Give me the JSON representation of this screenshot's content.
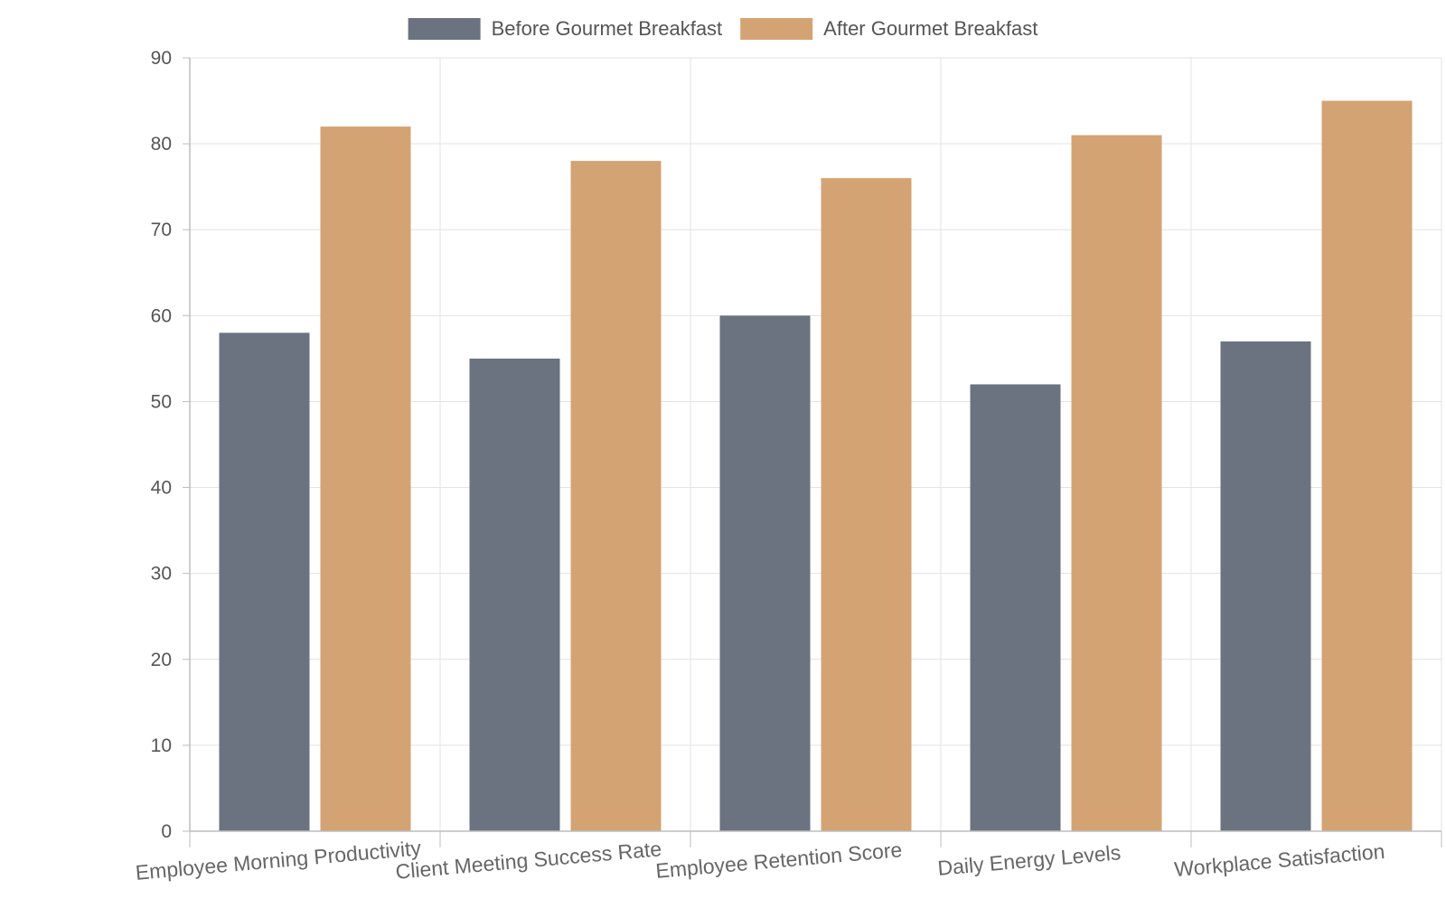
{
  "chart_data": {
    "type": "bar",
    "title": "",
    "xlabel": "",
    "ylabel": "",
    "categories": [
      "Employee Morning Productivity",
      "Client Meeting Success Rate",
      "Employee Retention Score",
      "Daily Energy Levels",
      "Workplace Satisfaction"
    ],
    "series": [
      {
        "name": "Before Gourmet Breakfast",
        "color": "#6b7280",
        "values": [
          58,
          55,
          60,
          52,
          57
        ]
      },
      {
        "name": "After Gourmet Breakfast",
        "color": "#d4a373",
        "values": [
          82,
          78,
          76,
          81,
          85
        ]
      }
    ],
    "ylim": [
      0,
      90
    ],
    "yticks": [
      0,
      10,
      20,
      30,
      40,
      50,
      60,
      70,
      80,
      90
    ],
    "grid": true,
    "legend_position": "top-center"
  }
}
